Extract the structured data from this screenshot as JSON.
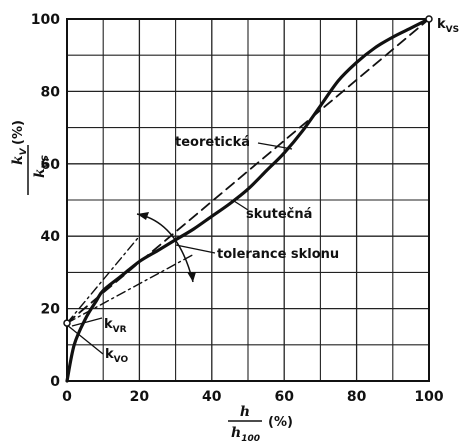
{
  "chart_data": {
    "type": "line",
    "xlabel": {
      "main": "h",
      "den": "h",
      "den_sub": "100",
      "unit": "(%)"
    },
    "ylabel": {
      "num": "k",
      "num_sub": "V",
      "den": "k",
      "den_sub": "VS",
      "unit": "(%)"
    },
    "xlim": [
      0,
      100
    ],
    "ylim": [
      0,
      100
    ],
    "xticks": [
      0,
      20,
      40,
      60,
      80,
      100
    ],
    "yticks": [
      0,
      20,
      40,
      60,
      80,
      100
    ],
    "grid": true,
    "series": [
      {
        "name": "skutečná",
        "style": "solid",
        "x": [
          0,
          2,
          5,
          8,
          10,
          15,
          20,
          25,
          30,
          35,
          40,
          45,
          50,
          55,
          60,
          65,
          70,
          75,
          80,
          85,
          90,
          95,
          100
        ],
        "y": [
          0,
          10,
          17,
          22,
          25,
          29,
          33,
          36,
          39,
          42,
          45.5,
          49,
          53,
          58,
          63,
          69,
          76,
          83,
          88,
          92,
          95,
          97.5,
          100
        ]
      },
      {
        "name": "teoretická",
        "style": "dashed",
        "x": [
          0,
          100
        ],
        "y": [
          16,
          100
        ]
      },
      {
        "name": "tolerance sklonu",
        "style": "dashdot",
        "x": [
          0,
          20
        ],
        "y": [
          16,
          40
        ]
      },
      {
        "name": "tolerance sklonu",
        "style": "dashdot",
        "x": [
          0,
          35
        ],
        "y": [
          16,
          35
        ]
      }
    ],
    "annotations": [
      {
        "id": "teoreticka",
        "text": "teoretická"
      },
      {
        "id": "skutecna",
        "text": "skutečná"
      },
      {
        "id": "tolerance",
        "text": "tolerance sklonu"
      },
      {
        "id": "kvs",
        "text": "k",
        "sub": "VS"
      },
      {
        "id": "kvr",
        "text": "k",
        "sub": "VR"
      },
      {
        "id": "kvo",
        "text": "k",
        "sub": "VO"
      }
    ]
  }
}
